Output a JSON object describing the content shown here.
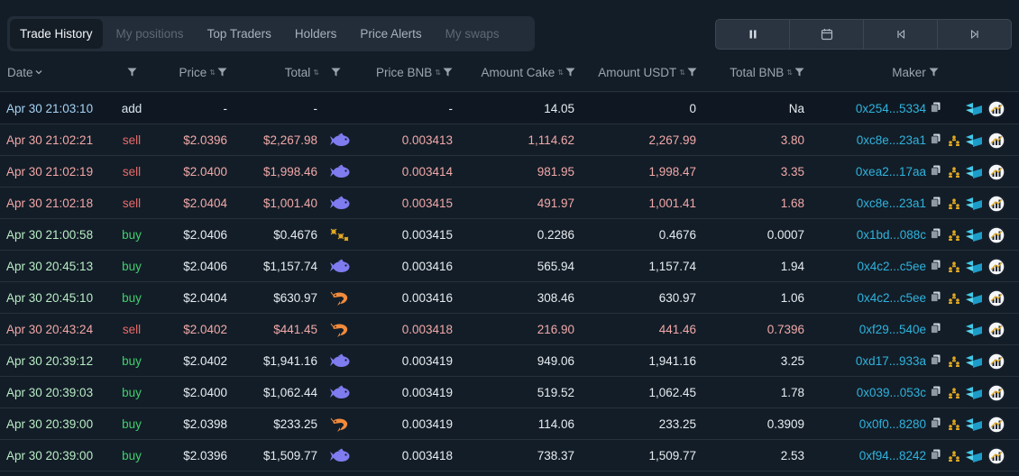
{
  "tabs": [
    {
      "label": "Trade History",
      "state": "active"
    },
    {
      "label": "My positions",
      "state": "disabled"
    },
    {
      "label": "Top Traders",
      "state": "normal"
    },
    {
      "label": "Holders",
      "state": "normal"
    },
    {
      "label": "Price Alerts",
      "state": "normal"
    },
    {
      "label": "My swaps",
      "state": "disabled"
    }
  ],
  "toolbar": [
    "pause-icon",
    "calendar-icon",
    "skip-start-icon",
    "skip-end-icon"
  ],
  "columns": {
    "date": "Date",
    "price": "Price",
    "total": "Total",
    "price_bnb": "Price BNB",
    "amount_cake": "Amount Cake",
    "amount_usdt": "Amount USDT",
    "total_bnb": "Total BNB",
    "maker": "Maker"
  },
  "colors": {
    "buy": "#3fcf6e",
    "sell": "#e86a6a",
    "link": "#2fb3de",
    "accent_fish": "#7f7cf0",
    "accent_shrimp": "#f08a3c"
  },
  "trades": [
    {
      "date": "Apr 30 21:03:10",
      "type": "add",
      "price": "-",
      "total": "-",
      "badge": "none",
      "price_bnb": "-",
      "amount_cake": "14.05",
      "amount_usdt": "0",
      "total_bnb": "Na",
      "maker": "0x254...5334",
      "holder_icon": false
    },
    {
      "date": "Apr 30 21:02:21",
      "type": "sell",
      "price": "$2.0396",
      "total": "$2,267.98",
      "badge": "fish",
      "price_bnb": "0.003413",
      "amount_cake": "1,114.62",
      "amount_usdt": "2,267.99",
      "total_bnb": "3.80",
      "maker": "0xc8e...23a1",
      "holder_icon": true
    },
    {
      "date": "Apr 30 21:02:19",
      "type": "sell",
      "price": "$2.0400",
      "total": "$1,998.46",
      "badge": "fish",
      "price_bnb": "0.003414",
      "amount_cake": "981.95",
      "amount_usdt": "1,998.47",
      "total_bnb": "3.35",
      "maker": "0xea2...17aa",
      "holder_icon": true
    },
    {
      "date": "Apr 30 21:02:18",
      "type": "sell",
      "price": "$2.0404",
      "total": "$1,001.40",
      "badge": "fish",
      "price_bnb": "0.003415",
      "amount_cake": "491.97",
      "amount_usdt": "1,001.41",
      "total_bnb": "1.68",
      "maker": "0xc8e...23a1",
      "holder_icon": true
    },
    {
      "date": "Apr 30 21:00:58",
      "type": "buy",
      "price": "$2.0406",
      "total": "$0.4676",
      "badge": "krill",
      "price_bnb": "0.003415",
      "amount_cake": "0.2286",
      "amount_usdt": "0.4676",
      "total_bnb": "0.0007",
      "maker": "0x1bd...088c",
      "holder_icon": true
    },
    {
      "date": "Apr 30 20:45:13",
      "type": "buy",
      "price": "$2.0406",
      "total": "$1,157.74",
      "badge": "fish",
      "price_bnb": "0.003416",
      "amount_cake": "565.94",
      "amount_usdt": "1,157.74",
      "total_bnb": "1.94",
      "maker": "0x4c2...c5ee",
      "holder_icon": true
    },
    {
      "date": "Apr 30 20:45:10",
      "type": "buy",
      "price": "$2.0404",
      "total": "$630.97",
      "badge": "shrimp",
      "price_bnb": "0.003416",
      "amount_cake": "308.46",
      "amount_usdt": "630.97",
      "total_bnb": "1.06",
      "maker": "0x4c2...c5ee",
      "holder_icon": true
    },
    {
      "date": "Apr 30 20:43:24",
      "type": "sell",
      "price": "$2.0402",
      "total": "$441.45",
      "badge": "shrimp",
      "price_bnb": "0.003418",
      "amount_cake": "216.90",
      "amount_usdt": "441.46",
      "total_bnb": "0.7396",
      "maker": "0xf29...540e",
      "holder_icon": false
    },
    {
      "date": "Apr 30 20:39:12",
      "type": "buy",
      "price": "$2.0402",
      "total": "$1,941.16",
      "badge": "fish",
      "price_bnb": "0.003419",
      "amount_cake": "949.06",
      "amount_usdt": "1,941.16",
      "total_bnb": "3.25",
      "maker": "0xd17...933a",
      "holder_icon": true
    },
    {
      "date": "Apr 30 20:39:03",
      "type": "buy",
      "price": "$2.0400",
      "total": "$1,062.44",
      "badge": "fish",
      "price_bnb": "0.003419",
      "amount_cake": "519.52",
      "amount_usdt": "1,062.45",
      "total_bnb": "1.78",
      "maker": "0x039...053c",
      "holder_icon": true
    },
    {
      "date": "Apr 30 20:39:00",
      "type": "buy",
      "price": "$2.0398",
      "total": "$233.25",
      "badge": "shrimp",
      "price_bnb": "0.003419",
      "amount_cake": "114.06",
      "amount_usdt": "233.25",
      "total_bnb": "0.3909",
      "maker": "0x0f0...8280",
      "holder_icon": true
    },
    {
      "date": "Apr 30 20:39:00",
      "type": "buy",
      "price": "$2.0396",
      "total": "$1,509.77",
      "badge": "fish",
      "price_bnb": "0.003418",
      "amount_cake": "738.37",
      "amount_usdt": "1,509.77",
      "total_bnb": "2.53",
      "maker": "0xf94...8242",
      "holder_icon": true
    }
  ]
}
